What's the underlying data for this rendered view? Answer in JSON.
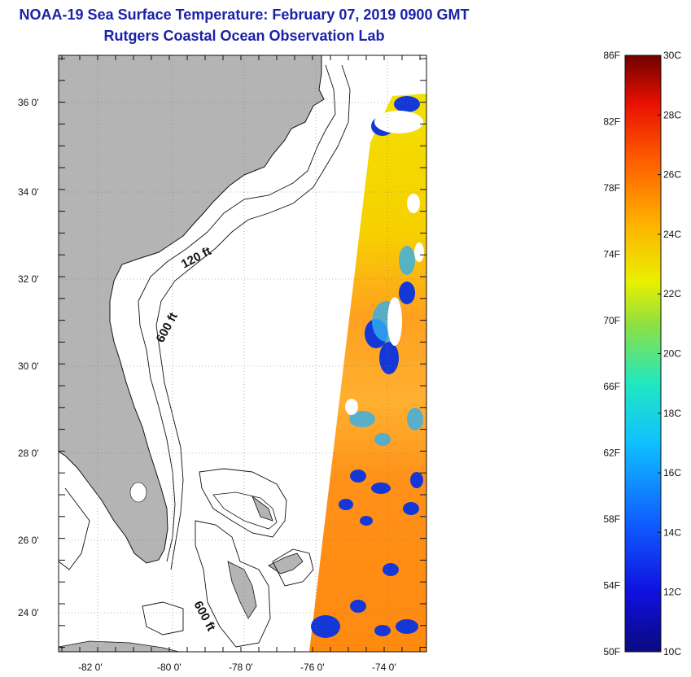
{
  "title": {
    "line1": "NOAA-19 Sea Surface Temperature:  February 07, 2019 0900 GMT",
    "line2": "Rutgers Coastal Ocean Observation Lab"
  },
  "map": {
    "lat_labels": [
      "36 0'",
      "34 0'",
      "32 0'",
      "30 0'",
      "28 0'",
      "26 0'",
      "24 0'"
    ],
    "lon_labels": [
      "-82 0'",
      "-80 0'",
      "-78 0'",
      "-76 0'",
      "-74 0'"
    ],
    "contour_labels": [
      "120 ft",
      "600 ft",
      "600 ft"
    ],
    "land_color": "#b4b4b4",
    "ocean_color": "#ffffff"
  },
  "colorbar": {
    "f_labels": [
      "86F",
      "82F",
      "78F",
      "74F",
      "70F",
      "66F",
      "62F",
      "58F",
      "54F",
      "50F"
    ],
    "c_labels": [
      "30C",
      "28C",
      "26C",
      "24C",
      "22C",
      "20C",
      "18C",
      "16C",
      "14C",
      "12C",
      "10C"
    ],
    "colors": [
      "#7a0000",
      "#d40000",
      "#ff5a00",
      "#ff9a00",
      "#f5e500",
      "#a0e040",
      "#20e0c0",
      "#1fa0ff",
      "#1030ff",
      "#0a0a90"
    ]
  }
}
